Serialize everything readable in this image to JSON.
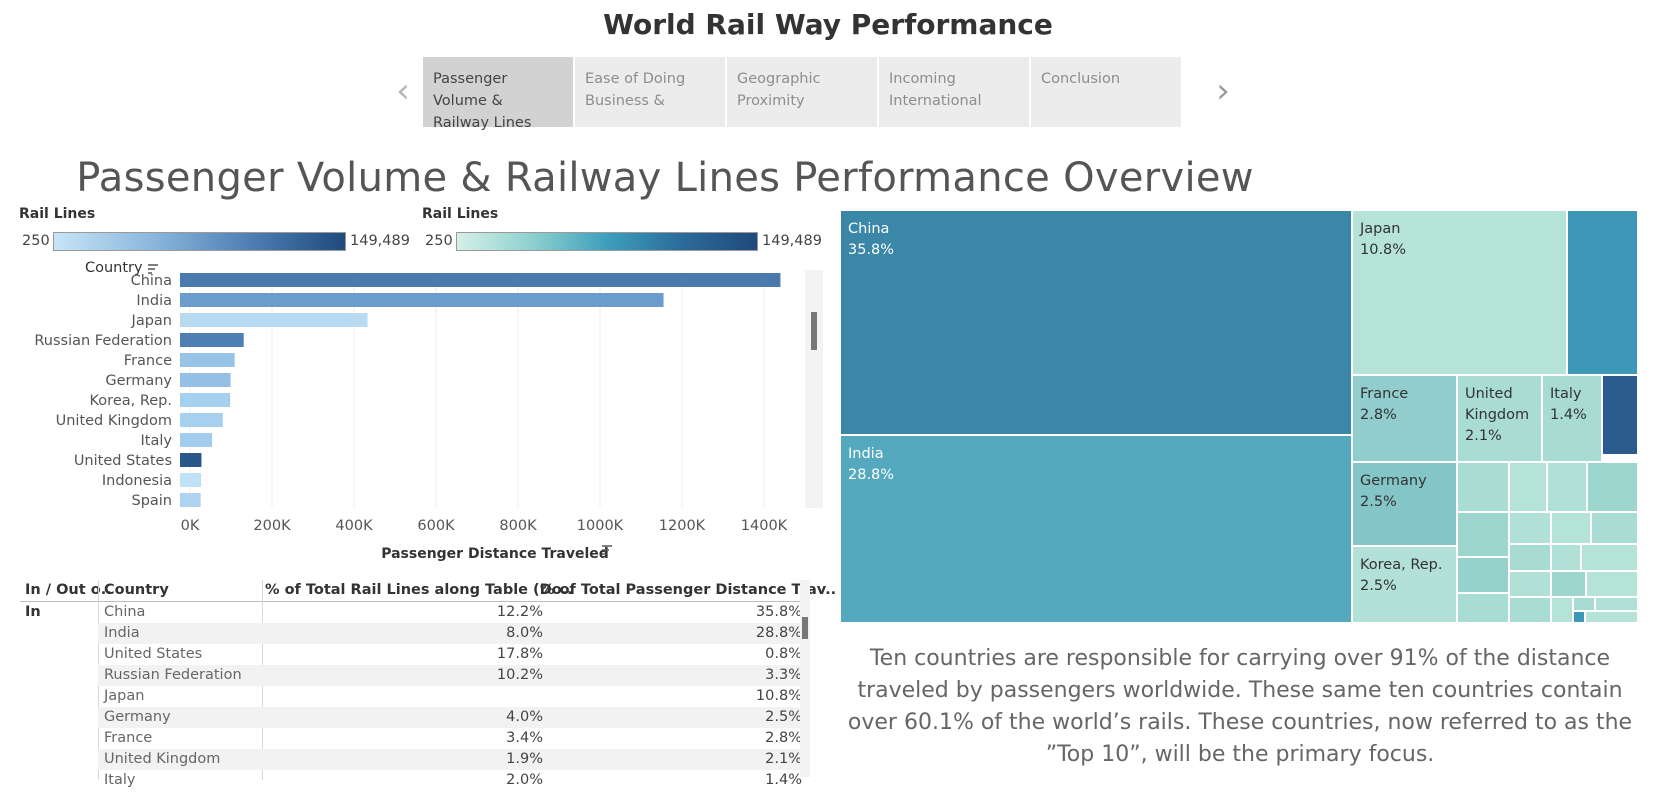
{
  "header": {
    "title": "World Rail Way Performance"
  },
  "story_nav": {
    "prev_arrow": "‹",
    "next_arrow": "›",
    "points": [
      {
        "label": "Passenger Volume & Railway Lines",
        "active": true
      },
      {
        "label": "Ease of Doing Business &",
        "active": false
      },
      {
        "label": "Geographic Proximity",
        "active": false
      },
      {
        "label": "Incoming International",
        "active": false
      },
      {
        "label": "Conclusion",
        "active": false
      }
    ]
  },
  "overview_title": "Passenger Volume & Railway Lines Performance Overview",
  "legends": [
    {
      "title": "Rail Lines",
      "min": "250",
      "max": "149,489"
    },
    {
      "title": "Rail Lines",
      "min": "250",
      "max": "149,489"
    }
  ],
  "chart_data": [
    {
      "type": "bar",
      "orientation": "horizontal",
      "row_header": "Country",
      "xlabel": "Passenger Distance Traveled",
      "xlim": [
        0,
        1500000
      ],
      "x_ticks": [
        "0K",
        "200K",
        "400K",
        "600K",
        "800K",
        "1000K",
        "1200K",
        "1400K"
      ],
      "x_tick_values": [
        0,
        200000,
        400000,
        600000,
        800000,
        1000000,
        1200000,
        1400000
      ],
      "categories": [
        "China",
        "India",
        "Japan",
        "Russian Federation",
        "France",
        "Germany",
        "Korea, Rep.",
        "United Kingdom",
        "Italy",
        "United States",
        "Indonesia",
        "Spain"
      ],
      "values": [
        1440000,
        1155000,
        433000,
        131000,
        109000,
        99000,
        98000,
        80000,
        54000,
        28000,
        27000,
        26000
      ],
      "color_by": "Rail Lines",
      "colors": [
        "#4a79ad",
        "#6b9dcc",
        "#b8dbf2",
        "#4e80b5",
        "#97c3e6",
        "#93c0e4",
        "#a7cfee",
        "#a7cfee",
        "#a4ccec",
        "#2a5888",
        "#bfe0f5",
        "#b0d4f0"
      ],
      "grid": true
    },
    {
      "type": "table",
      "columns": [
        "In / Out o..",
        "Country",
        "% of Total Rail Lines along Table (Do..",
        "% of Total Passenger Distance Trav.."
      ],
      "group_label": "In",
      "rows": [
        [
          "China",
          "12.2%",
          "35.8%"
        ],
        [
          "India",
          "8.0%",
          "28.8%"
        ],
        [
          "United States",
          "17.8%",
          "0.8%"
        ],
        [
          "Russian Federation",
          "10.2%",
          "3.3%"
        ],
        [
          "Japan",
          "",
          "10.8%"
        ],
        [
          "Germany",
          "4.0%",
          "2.5%"
        ],
        [
          "France",
          "3.4%",
          "2.8%"
        ],
        [
          "United Kingdom",
          "1.9%",
          "2.1%"
        ],
        [
          "Italy",
          "2.0%",
          "1.4%"
        ]
      ]
    },
    {
      "type": "treemap",
      "size_measure": "% of Total Passenger Distance Traveled",
      "color_measure": "Rail Lines",
      "items": [
        {
          "name": "China",
          "value": "35.8%",
          "color": "#3a87a8",
          "text_color": "#ffffff"
        },
        {
          "name": "India",
          "value": "28.8%",
          "color": "#54a9bf",
          "text_color": "#ffffff"
        },
        {
          "name": "Japan",
          "value": "10.8%",
          "color": "#b6e3d8",
          "text_color": "#333333"
        },
        {
          "name": "France",
          "value": "2.8%",
          "color": "#90cdcc",
          "text_color": "#333333"
        },
        {
          "name": "United Kingdom",
          "value": "2.1%",
          "color": "#a9dcd3",
          "text_color": "#333333"
        },
        {
          "name": "Italy",
          "value": "1.4%",
          "color": "#a8dbd2",
          "text_color": "#333333"
        },
        {
          "name": "Germany",
          "value": "2.5%",
          "color": "#84c5c8",
          "text_color": "#333333"
        },
        {
          "name": "Korea, Rep.",
          "value": "2.5%",
          "color": "#b3e1d7",
          "text_color": "#333333"
        }
      ]
    }
  ],
  "summary": "Ten countries are responsible for carrying over 91% of the distance traveled by passengers worldwide. These same ten countries contain over 60.1% of the world’s rails. These countries, now referred to as the ”Top 10”, will be the primary focus."
}
